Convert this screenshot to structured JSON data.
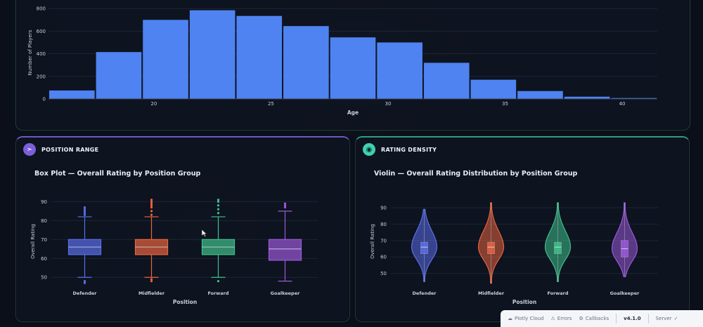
{
  "panels": {
    "box": {
      "title": "POSITION RANGE",
      "icon": "pin-icon"
    },
    "violin": {
      "title": "RATING DENSITY",
      "icon": "gauge-icon"
    }
  },
  "toolbar": {
    "items": [
      "Plotly Cloud",
      "Errors",
      "Callbacks"
    ],
    "version": "v4.1.0",
    "server": "Server"
  },
  "chart_data": [
    {
      "type": "bar",
      "title": "",
      "xlabel": "Age",
      "ylabel": "Number of Players",
      "x": [
        16.5,
        18.5,
        20.5,
        22.5,
        24.5,
        26.5,
        28.5,
        30.5,
        32.5,
        34.5,
        36.5,
        38.5,
        40.5
      ],
      "values": [
        75,
        415,
        700,
        785,
        735,
        645,
        545,
        500,
        320,
        170,
        70,
        20,
        8
      ],
      "bin_width": 2,
      "xticks": [
        20,
        25,
        30,
        35,
        40
      ],
      "yticks": [
        0,
        200,
        400,
        600,
        800
      ],
      "xlim": [
        15.5,
        41.5
      ],
      "ylim": [
        0,
        820
      ],
      "color": "#4f83f1"
    },
    {
      "type": "box",
      "title": "Box Plot — Overall Rating by Position Group",
      "xlabel": "Position",
      "ylabel": "Overall Rating",
      "categories": [
        "Defender",
        "Midfielder",
        "Forward",
        "Goalkeeper"
      ],
      "series": [
        {
          "category": "Defender",
          "color": "#5b6ee8",
          "min": 50,
          "q1": 62,
          "median": 66,
          "q3": 70,
          "max": 82,
          "outliers": [
            83,
            84,
            85,
            86,
            87,
            47,
            48
          ]
        },
        {
          "category": "Midfielder",
          "color": "#e8643f",
          "min": 50,
          "q1": 62,
          "median": 66,
          "q3": 70,
          "max": 82,
          "outliers": [
            83,
            85,
            87,
            88,
            89,
            90,
            91,
            48,
            49
          ]
        },
        {
          "category": "Forward",
          "color": "#3fbf8a",
          "min": 50,
          "q1": 62,
          "median": 66,
          "q3": 70,
          "max": 82,
          "outliers": [
            84,
            86,
            88,
            90,
            91,
            48
          ]
        },
        {
          "category": "Goalkeeper",
          "color": "#9b59d9",
          "min": 48,
          "q1": 59,
          "median": 65,
          "q3": 70,
          "max": 85,
          "outliers": [
            87,
            88,
            89
          ]
        }
      ],
      "yticks": [
        50,
        60,
        70,
        80,
        90
      ],
      "ylim": [
        46,
        92
      ]
    },
    {
      "type": "violin",
      "title": "Violin — Overall Rating Distribution by Position Group",
      "xlabel": "Position",
      "ylabel": "Overall Rating",
      "categories": [
        "Defender",
        "Midfielder",
        "Forward",
        "Goalkeeper"
      ],
      "series": [
        {
          "category": "Defender",
          "color": "#5b6ee8",
          "min": 45,
          "max": 89,
          "q1": 62,
          "median": 66,
          "q3": 69,
          "mode": 66
        },
        {
          "category": "Midfielder",
          "color": "#e8643f",
          "min": 44,
          "max": 93,
          "q1": 62,
          "median": 66,
          "q3": 69,
          "mode": 66
        },
        {
          "category": "Forward",
          "color": "#3fbf8a",
          "min": 45,
          "max": 93,
          "q1": 62,
          "median": 66,
          "q3": 69,
          "mode": 66
        },
        {
          "category": "Goalkeeper",
          "color": "#9b59d9",
          "min": 48,
          "max": 93,
          "q1": 60,
          "median": 65,
          "q3": 70,
          "mode": 65
        }
      ],
      "yticks": [
        50,
        60,
        70,
        80,
        90
      ],
      "ylim": [
        43,
        96
      ]
    }
  ]
}
